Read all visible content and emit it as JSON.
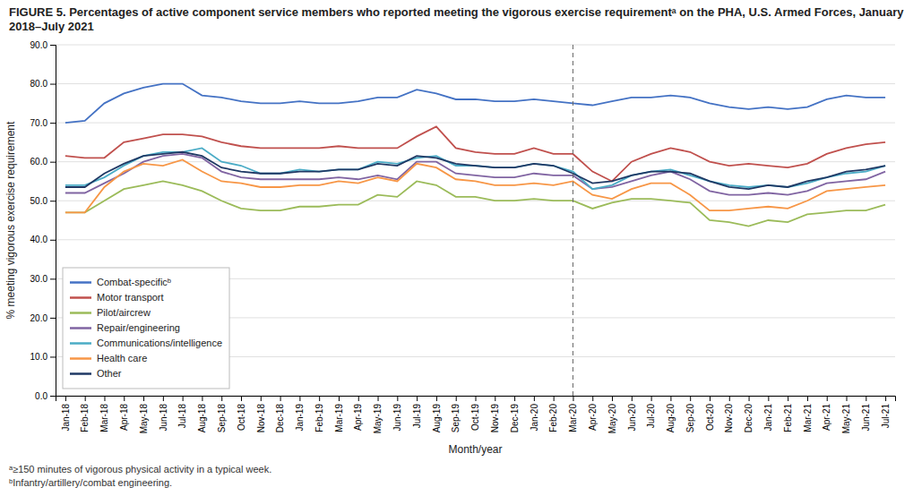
{
  "chart_data": {
    "type": "line",
    "title": "FIGURE 5. Percentages of active component service members who reported meeting the vigorous exercise requirementᵃ on the PHA, U.S. Armed Forces, January 2018–July 2021",
    "x_label": "Month/year",
    "y_label": "% meeting vigorous exercise requirement",
    "annotations": [
      "ᵃ≥150 minutes of vigorous physical activity in a typical week.",
      "ᵇInfantry/artillery/combat engineering."
    ],
    "categories": [
      "Jan-18",
      "Feb-18",
      "Mar-18",
      "Apr-18",
      "May-18",
      "Jun-18",
      "Jul-18",
      "Aug-18",
      "Sep-18",
      "Oct-18",
      "Nov-18",
      "Dec-18",
      "Jan-19",
      "Feb-19",
      "Mar-19",
      "Apr-19",
      "May-19",
      "Jun-19",
      "Jul-19",
      "Aug-19",
      "Sep-19",
      "Oct-19",
      "Nov-19",
      "Dec-19",
      "Jan-20",
      "Feb-20",
      "Mar-20",
      "Apr-20",
      "May-20",
      "Jun-20",
      "Jul-20",
      "Aug-20",
      "Sep-20",
      "Oct-20",
      "Nov-20",
      "Dec-20",
      "Jan-21",
      "Feb-21",
      "Mar-21",
      "Apr-21",
      "May-21",
      "Jun-21",
      "Jul-21"
    ],
    "series": [
      {
        "name": "Combat-specificᵇ",
        "color": "#4472C4",
        "values": [
          70.0,
          70.5,
          75.0,
          77.5,
          79.0,
          80.0,
          80.0,
          77.0,
          76.5,
          75.5,
          75.0,
          75.0,
          75.5,
          75.0,
          75.0,
          75.5,
          76.5,
          76.5,
          78.5,
          77.5,
          76.0,
          76.0,
          75.5,
          75.5,
          76.0,
          75.5,
          75.0,
          74.5,
          75.5,
          76.5,
          76.5,
          77.0,
          76.5,
          75.0,
          74.0,
          73.5,
          74.0,
          73.5,
          74.0,
          76.0,
          77.0,
          76.5,
          76.5
        ]
      },
      {
        "name": "Motor transport",
        "color": "#C0504D",
        "values": [
          61.5,
          61.0,
          61.0,
          65.0,
          66.0,
          67.0,
          67.0,
          66.5,
          65.0,
          64.0,
          63.5,
          63.5,
          63.5,
          63.5,
          64.0,
          63.5,
          63.5,
          63.5,
          66.5,
          69.0,
          63.5,
          62.5,
          62.0,
          62.0,
          63.5,
          62.0,
          62.0,
          57.5,
          55.0,
          60.0,
          62.0,
          63.5,
          62.5,
          60.0,
          59.0,
          59.5,
          59.0,
          58.5,
          59.5,
          62.0,
          63.5,
          64.5,
          65.0
        ]
      },
      {
        "name": "Pilot/aircrew",
        "color": "#9BBB59",
        "values": [
          47.0,
          47.0,
          50.0,
          53.0,
          54.0,
          55.0,
          54.0,
          52.5,
          50.0,
          48.0,
          47.5,
          47.5,
          48.5,
          48.5,
          49.0,
          49.0,
          51.5,
          51.0,
          55.0,
          54.0,
          51.0,
          51.0,
          50.0,
          50.0,
          50.5,
          50.0,
          50.0,
          48.0,
          49.5,
          50.5,
          50.5,
          50.0,
          49.5,
          45.0,
          44.5,
          43.5,
          45.0,
          44.5,
          46.5,
          47.0,
          47.5,
          47.5,
          49.0
        ]
      },
      {
        "name": "Repair/engineering",
        "color": "#8064A2",
        "values": [
          52.0,
          52.0,
          54.5,
          57.0,
          60.0,
          61.5,
          62.0,
          61.0,
          57.5,
          56.0,
          55.5,
          55.5,
          55.5,
          55.5,
          56.0,
          55.5,
          56.5,
          55.5,
          60.0,
          60.0,
          57.0,
          56.5,
          56.0,
          56.0,
          57.0,
          56.5,
          56.5,
          53.0,
          53.5,
          55.0,
          56.5,
          57.5,
          55.5,
          52.5,
          51.5,
          51.5,
          52.0,
          51.5,
          52.5,
          54.5,
          55.0,
          55.5,
          57.5
        ]
      },
      {
        "name": "Communications/intelligence",
        "color": "#4BACC6",
        "values": [
          54.0,
          54.0,
          56.0,
          59.0,
          61.5,
          62.5,
          62.5,
          63.5,
          60.0,
          59.0,
          57.0,
          57.0,
          58.0,
          57.5,
          58.0,
          58.0,
          60.0,
          59.5,
          61.0,
          61.5,
          59.0,
          59.0,
          58.5,
          58.5,
          59.5,
          59.0,
          57.5,
          53.0,
          54.0,
          56.5,
          57.5,
          58.0,
          56.5,
          55.0,
          54.0,
          53.5,
          54.0,
          53.5,
          54.5,
          56.0,
          57.0,
          57.5,
          59.0
        ]
      },
      {
        "name": "Health care",
        "color": "#F79646",
        "values": [
          47.0,
          47.0,
          53.5,
          57.5,
          59.5,
          59.0,
          60.5,
          57.5,
          55.0,
          54.5,
          53.5,
          53.5,
          54.0,
          54.0,
          55.0,
          54.5,
          56.0,
          55.0,
          59.5,
          58.5,
          55.5,
          55.0,
          54.0,
          54.0,
          54.5,
          54.0,
          55.0,
          51.5,
          50.5,
          53.0,
          54.5,
          54.5,
          51.5,
          47.5,
          47.5,
          48.0,
          48.5,
          48.0,
          50.0,
          52.5,
          53.0,
          53.5,
          54.0
        ]
      },
      {
        "name": "Other",
        "color": "#1F3864",
        "values": [
          53.5,
          53.5,
          57.0,
          59.5,
          61.5,
          62.0,
          62.5,
          61.5,
          58.5,
          57.5,
          57.0,
          57.0,
          57.5,
          57.5,
          58.0,
          58.0,
          59.5,
          59.0,
          61.5,
          61.0,
          59.5,
          59.0,
          58.5,
          58.5,
          59.5,
          59.0,
          57.0,
          54.5,
          55.0,
          56.5,
          57.5,
          57.5,
          57.0,
          55.0,
          53.5,
          53.0,
          54.0,
          53.5,
          55.0,
          56.0,
          57.5,
          58.0,
          59.0
        ]
      }
    ],
    "vline": {
      "category": "Mar-20"
    },
    "ylim": [
      0.0,
      90.0
    ],
    "yticks": [
      {
        "value": 0,
        "label": "0.0"
      },
      {
        "value": 10,
        "label": "10.0"
      },
      {
        "value": 20,
        "label": "20.0"
      },
      {
        "value": 30,
        "label": "30.0"
      },
      {
        "value": 40,
        "label": "40.0"
      },
      {
        "value": 50,
        "label": "50.0"
      },
      {
        "value": 60,
        "label": "60.0"
      },
      {
        "value": 70,
        "label": "70.0"
      },
      {
        "value": 80,
        "label": "80.0"
      },
      {
        "value": 90,
        "label": "90.0"
      }
    ],
    "grid": true,
    "legend": "lower left"
  }
}
